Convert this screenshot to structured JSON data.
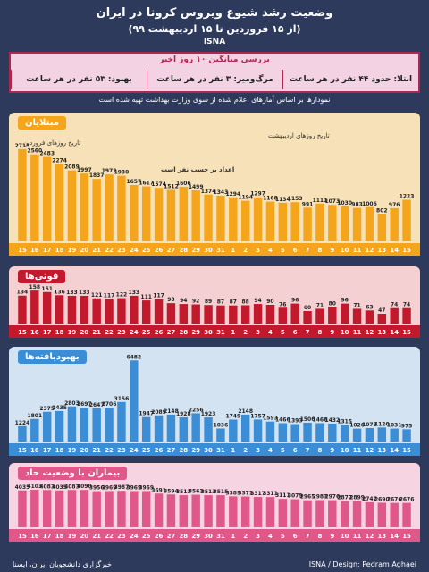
{
  "header": {
    "title": "وضعیت رشد شیوع ویروس کرونا در ایران",
    "subtitle": "(از ۱۵ فروردین تا ۱۵ اردیبهشت ۹۹)",
    "brand": "ISNA"
  },
  "summary": {
    "heading": "بررسی میانگین ۱۰ روز اخیر",
    "cells": [
      "ابتلا: حدود ۴۴ نفر در هر ساعت",
      "مرگ‌ومیر: ۳ نفر در هر ساعت",
      "بهبود: ۵۳ نفر در هر ساعت"
    ]
  },
  "note": "نمودارها بر اساس آمارهای اعلام شده از سوی وزارت بهداشت تهیه شده است",
  "colors": {
    "background": "#2d3a5c",
    "infected_panel": "#f6e1b8",
    "infected_bar": "#f5a51b",
    "infected_strip": "#f5a51b",
    "deaths_panel": "#f5d0d2",
    "deaths_bar": "#c3192d",
    "deaths_strip": "#c3192d",
    "recovered_panel": "#d3e3f1",
    "recovered_bar": "#3b8ed5",
    "recovered_strip": "#3b8ed5",
    "critical_panel": "#f6d4e1",
    "critical_bar": "#e0588a",
    "critical_strip": "#e0588a"
  },
  "panels": {
    "infected": {
      "label": "مبتلایان",
      "annotations": [
        "تاریخ روزهای فروردین",
        "تاریخ روزهای اردیبهشت",
        "اعداد بر حسب نفر است"
      ]
    },
    "deaths": {
      "label": "فوتی‌ها"
    },
    "recovered": {
      "label": "بهبودیافته‌ها"
    },
    "critical": {
      "label": "بیماران با وضعیت حاد"
    }
  },
  "footer": {
    "left": "خبرگزاری دانشجویان ایران، ایسنا",
    "right": "ISNA / Design: Pedram Aghaei"
  },
  "chart_data": [
    {
      "type": "bar",
      "title": "مبتلایان",
      "categories": [
        "15",
        "16",
        "17",
        "18",
        "19",
        "20",
        "21",
        "22",
        "23",
        "24",
        "25",
        "26",
        "27",
        "28",
        "29",
        "30",
        "31",
        "1",
        "2",
        "3",
        "4",
        "5",
        "6",
        "7",
        "8",
        "9",
        "10",
        "11",
        "12",
        "13",
        "14",
        "15"
      ],
      "values": [
        2715,
        2560,
        2483,
        2274,
        2089,
        1997,
        1837,
        1972,
        1930,
        1657,
        1617,
        1574,
        1512,
        1606,
        1499,
        1374,
        1343,
        1294,
        1194,
        1297,
        1168,
        1134,
        1153,
        991,
        1111,
        1073,
        1030,
        983,
        1006,
        802,
        976,
        1223
      ],
      "ylim": [
        0,
        3000
      ]
    },
    {
      "type": "bar",
      "title": "فوتی‌ها",
      "categories": [
        "15",
        "16",
        "17",
        "18",
        "19",
        "20",
        "21",
        "22",
        "23",
        "24",
        "25",
        "26",
        "27",
        "28",
        "29",
        "30",
        "31",
        "1",
        "2",
        "3",
        "4",
        "5",
        "6",
        "7",
        "8",
        "9",
        "10",
        "11",
        "12",
        "13",
        "14",
        "15"
      ],
      "values": [
        134,
        158,
        151,
        136,
        133,
        133,
        121,
        117,
        122,
        133,
        111,
        117,
        98,
        94,
        92,
        89,
        87,
        87,
        88,
        94,
        90,
        76,
        96,
        60,
        71,
        80,
        96,
        71,
        63,
        47,
        74,
        74
      ],
      "ylim": [
        0,
        180
      ]
    },
    {
      "type": "bar",
      "title": "بهبودیافته‌ها",
      "categories": [
        "15",
        "16",
        "17",
        "18",
        "19",
        "20",
        "21",
        "22",
        "23",
        "24",
        "25",
        "26",
        "27",
        "28",
        "29",
        "30",
        "31",
        "1",
        "2",
        "3",
        "4",
        "5",
        "6",
        "7",
        "8",
        "9",
        "10",
        "11",
        "12",
        "13",
        "14",
        "15"
      ],
      "values": [
        1224,
        1801,
        2375,
        2435,
        2803,
        2697,
        2647,
        2706,
        3156,
        6482,
        1947,
        2089,
        2148,
        1928,
        2256,
        1923,
        1036,
        1749,
        2148,
        1757,
        1593,
        1466,
        1393,
        1506,
        1466,
        1432,
        1315,
        1026,
        1073,
        1120,
        1031,
        975
      ],
      "ylim": [
        0,
        7000
      ]
    },
    {
      "type": "bar",
      "title": "بیماران با وضعیت حاد",
      "categories": [
        "15",
        "16",
        "17",
        "18",
        "19",
        "20",
        "21",
        "22",
        "23",
        "24",
        "25",
        "26",
        "27",
        "28",
        "29",
        "30",
        "31",
        "1",
        "2",
        "3",
        "4",
        "5",
        "6",
        "7",
        "8",
        "9",
        "10",
        "11",
        "12",
        "13",
        "14",
        "15"
      ],
      "values": [
        4035,
        4103,
        4083,
        4035,
        4083,
        4090,
        3956,
        3969,
        3987,
        3969,
        3969,
        3691,
        3594,
        3513,
        3563,
        3513,
        3515,
        3389,
        3371,
        3317,
        3311,
        3111,
        3079,
        2965,
        2983,
        2976,
        2877,
        2899,
        2747,
        2690,
        2676,
        2676
      ],
      "ylim": [
        0,
        4500
      ]
    }
  ]
}
